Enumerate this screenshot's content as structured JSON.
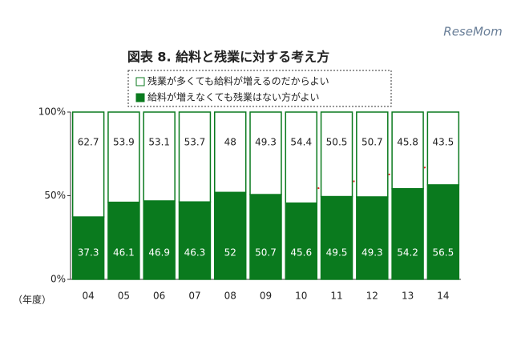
{
  "chart_data": {
    "type": "stacked_bar",
    "title": "図表 8. 給料と残業に対する考え方",
    "watermark": "ReseMom",
    "x_label": "（年度）",
    "categories": [
      "04",
      "05",
      "06",
      "07",
      "08",
      "09",
      "10",
      "11",
      "12",
      "13",
      "14"
    ],
    "series": [
      {
        "name": "給料が増えなくても残業はない方がよい",
        "color": "#0a7a1e",
        "values": [
          37.3,
          46.1,
          46.9,
          46.3,
          52.0,
          50.7,
          45.6,
          49.5,
          49.3,
          54.2,
          56.5
        ]
      },
      {
        "name": "残業が多くても給料が増えるのだからよい",
        "color": "#ffffff",
        "values": [
          62.7,
          53.9,
          53.1,
          53.7,
          48.0,
          49.3,
          54.4,
          50.5,
          50.7,
          45.8,
          43.5
        ]
      }
    ],
    "ylim": [
      0,
      100
    ],
    "yticks": [
      {
        "value": 0,
        "label": "0%"
      },
      {
        "value": 50,
        "label": "50%"
      },
      {
        "value": 100,
        "label": "100%"
      }
    ]
  }
}
